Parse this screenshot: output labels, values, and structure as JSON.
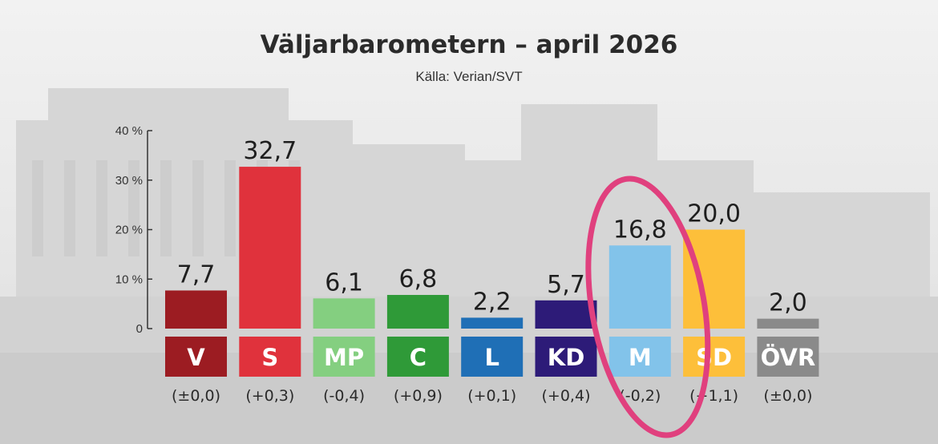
{
  "chart_data": {
    "type": "bar",
    "title": "Väljarbarometern – april 2026",
    "subtitle": "Källa: Verian/SVT",
    "categories": [
      "V",
      "S",
      "MP",
      "C",
      "L",
      "KD",
      "M",
      "SD",
      "ÖVR"
    ],
    "values": [
      7.7,
      32.7,
      6.1,
      6.8,
      2.2,
      5.7,
      16.8,
      20.0,
      2.0
    ],
    "value_labels": [
      "7,7",
      "32,7",
      "6,1",
      "6,8",
      "2,2",
      "5,7",
      "16,8",
      "20,0",
      "2,0"
    ],
    "changes": [
      "(±0,0)",
      "(+0,3)",
      "(-0,4)",
      "(+0,9)",
      "(+0,1)",
      "(+0,4)",
      "(-0,2)",
      "(+1,1)",
      "(±0,0)"
    ],
    "colors": [
      "#9c1c22",
      "#e0323c",
      "#84cf80",
      "#2f9a38",
      "#1f6fb6",
      "#2d1b78",
      "#82c3ea",
      "#fdbf3a",
      "#8a8a8a"
    ],
    "ylim": [
      0,
      40
    ],
    "yticks": [
      0,
      10,
      20,
      30,
      40
    ],
    "ytick_labels": [
      "0",
      "10 %",
      "20 %",
      "30 %",
      "40 %"
    ],
    "grid": false,
    "annotation": {
      "type": "ellipse",
      "target": "M",
      "color": "#e0407e"
    }
  }
}
